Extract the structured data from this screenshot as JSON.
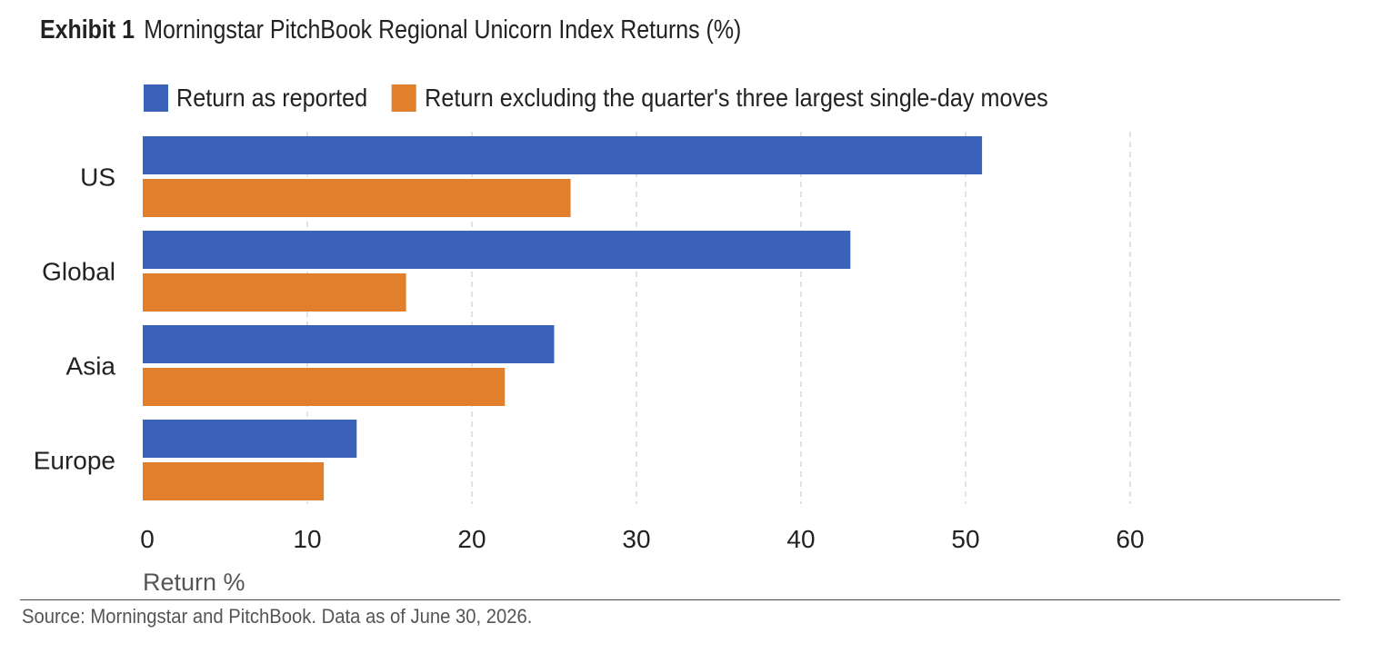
{
  "header": {
    "label": "Exhibit 1",
    "title": "Morningstar PitchBook Regional Unicorn Index Returns (%)"
  },
  "source": "Source: Morningstar and PitchBook. Data as of June 30, 2026.",
  "colors": {
    "series_reported": "#3a62b8",
    "series_excluding": "#e27f2d",
    "gridline": "#d9d9d9",
    "text": "#222222",
    "axis_title": "#555555"
  },
  "chart_data": {
    "type": "bar",
    "orientation": "horizontal",
    "categories": [
      "US",
      "Global",
      "Asia",
      "Europe"
    ],
    "series": [
      {
        "name": "Return as reported",
        "values": [
          51,
          43,
          25,
          13
        ]
      },
      {
        "name": "Return excluding the quarter's three largest single-day moves",
        "values": [
          26,
          16,
          22,
          11
        ]
      }
    ],
    "xlabel": "Return %",
    "ylabel": "",
    "xlim": [
      0,
      60
    ],
    "x_ticks": [
      "0",
      "10",
      "20",
      "30",
      "40",
      "50",
      "60"
    ],
    "grid": "vertical dashed",
    "legend_position": "top-left"
  }
}
